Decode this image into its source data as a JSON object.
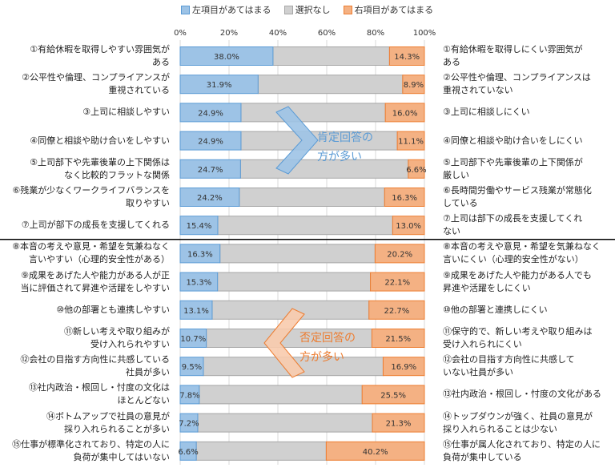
{
  "chart_data": {
    "type": "bar",
    "stacked": true,
    "orientation": "horizontal",
    "x_ticks": [
      "0%",
      "20%",
      "40%",
      "60%",
      "80%",
      "100%"
    ],
    "xlim": [
      0,
      100
    ],
    "grid": true,
    "legend_position": "top",
    "series": [
      {
        "name": "左項目があてはまる",
        "color": "#9dc3e6",
        "values": [
          38.0,
          31.9,
          24.9,
          24.9,
          24.7,
          24.2,
          15.4,
          16.3,
          15.3,
          13.1,
          10.7,
          9.5,
          7.8,
          7.2,
          6.6
        ]
      },
      {
        "name": "選択なし",
        "color": "#d0d0d0"
      },
      {
        "name": "右項目があてはまる",
        "color": "#f4b183",
        "values": [
          14.3,
          8.9,
          16.0,
          11.1,
          6.6,
          16.3,
          13.0,
          20.2,
          22.1,
          22.7,
          21.5,
          16.9,
          25.5,
          21.3,
          40.2
        ]
      }
    ],
    "left_labels": [
      "①有給休暇を取得しやすい雰囲気が\nある",
      "②公平性や倫理、コンプライアンスが\n重視されている",
      "③上司に相談しやすい",
      "④同僚と相談や助け合いをしやすい",
      "⑤上司部下や先輩後輩の上下関係は\nなく比較的フラットな関係",
      "⑥残業が少なくワークライフバランスを\n取りやすい",
      "⑦上司が部下の成長を支援してくれる",
      "⑧本音の考えや意見・希望を気兼ねなく\n言いやすい（心理的安全性がある）",
      "⑨成果をあげた人や能力がある人が正\n当に評価されて昇進や活躍をしやすい",
      "⑩他の部署とも連携しやすい",
      "⑪新しい考えや取り組みが\n受け入れられやすい",
      "⑫会社の目指す方向性に共感している\n社員が多い",
      "⑬社内政治・根回し・忖度の文化は\nほとんどない",
      "⑭ボトムアップで社員の意見が\n採り入れられることが多い",
      "⑮仕事が標準化されており、特定の人に\n負荷が集中してはいない"
    ],
    "right_labels": [
      "①有給休暇を取得しにくい雰囲気が\nある",
      "②公平性や倫理、コンプライアンスは\n重視されていない",
      "③上司に相談しにくい",
      "④同僚と相談や助け合いをしにくい",
      "⑤上司部下や先輩後輩の上下関係が\n厳しい",
      "⑥長時間労働やサービス残業が常態化\nしている",
      "⑦上司は部下の成長を支援してくれ\nない",
      "⑧本音の考えや意見・希望を気兼ねなく\n言いにくい（心理的安全性がない）",
      "⑨成果をあげた人や能力がある人でも\n昇進や活躍をしにくい",
      "⑩他の部署と連携しにくい",
      "⑪保守的で、新しい考えや取り組みは\n受け入れられにくい",
      "⑫会社の目指す方向性に共感して\nいない社員が多い",
      "⑬社内政治・根回し・忖度の文化がある",
      "⑭トップダウンが強く、社員の意見が\n採り入れられることは少ない",
      "⑮仕事が属人化されており、特定の人に\n負荷が集中している"
    ],
    "annotations": [
      {
        "text": "肯定回答の\n方が多い",
        "arrow": "right",
        "color": "#5b9bd5"
      },
      {
        "text": "否定回答の\n方が多い",
        "arrow": "left",
        "color": "#ed7d31"
      }
    ],
    "divider_after_row": 7
  }
}
